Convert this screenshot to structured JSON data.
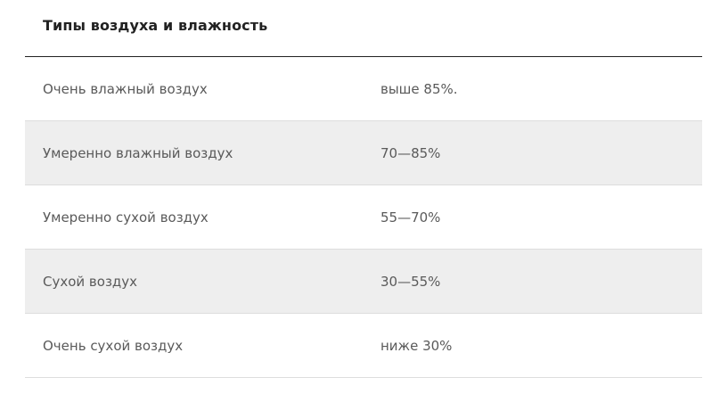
{
  "table": {
    "title": "Типы воздуха и влажность",
    "rows": [
      {
        "type": "Очень влажный воздух",
        "humidity": "выше 85%.",
        "shaded": false
      },
      {
        "type": "Умеренно влажный воздух",
        "humidity": "70—85%",
        "shaded": true
      },
      {
        "type": "Умеренно сухой воздух",
        "humidity": "55—70%",
        "shaded": false
      },
      {
        "type": "Сухой воздух",
        "humidity": "30—55%",
        "shaded": true
      },
      {
        "type": "Очень сухой воздух",
        "humidity": "ниже 30%",
        "shaded": false
      }
    ]
  },
  "colors": {
    "shaded_row": "#eeeeee",
    "header_rule": "#222222",
    "row_rule": "#dddddd",
    "text": "#5a5a5a",
    "title": "#222222"
  }
}
